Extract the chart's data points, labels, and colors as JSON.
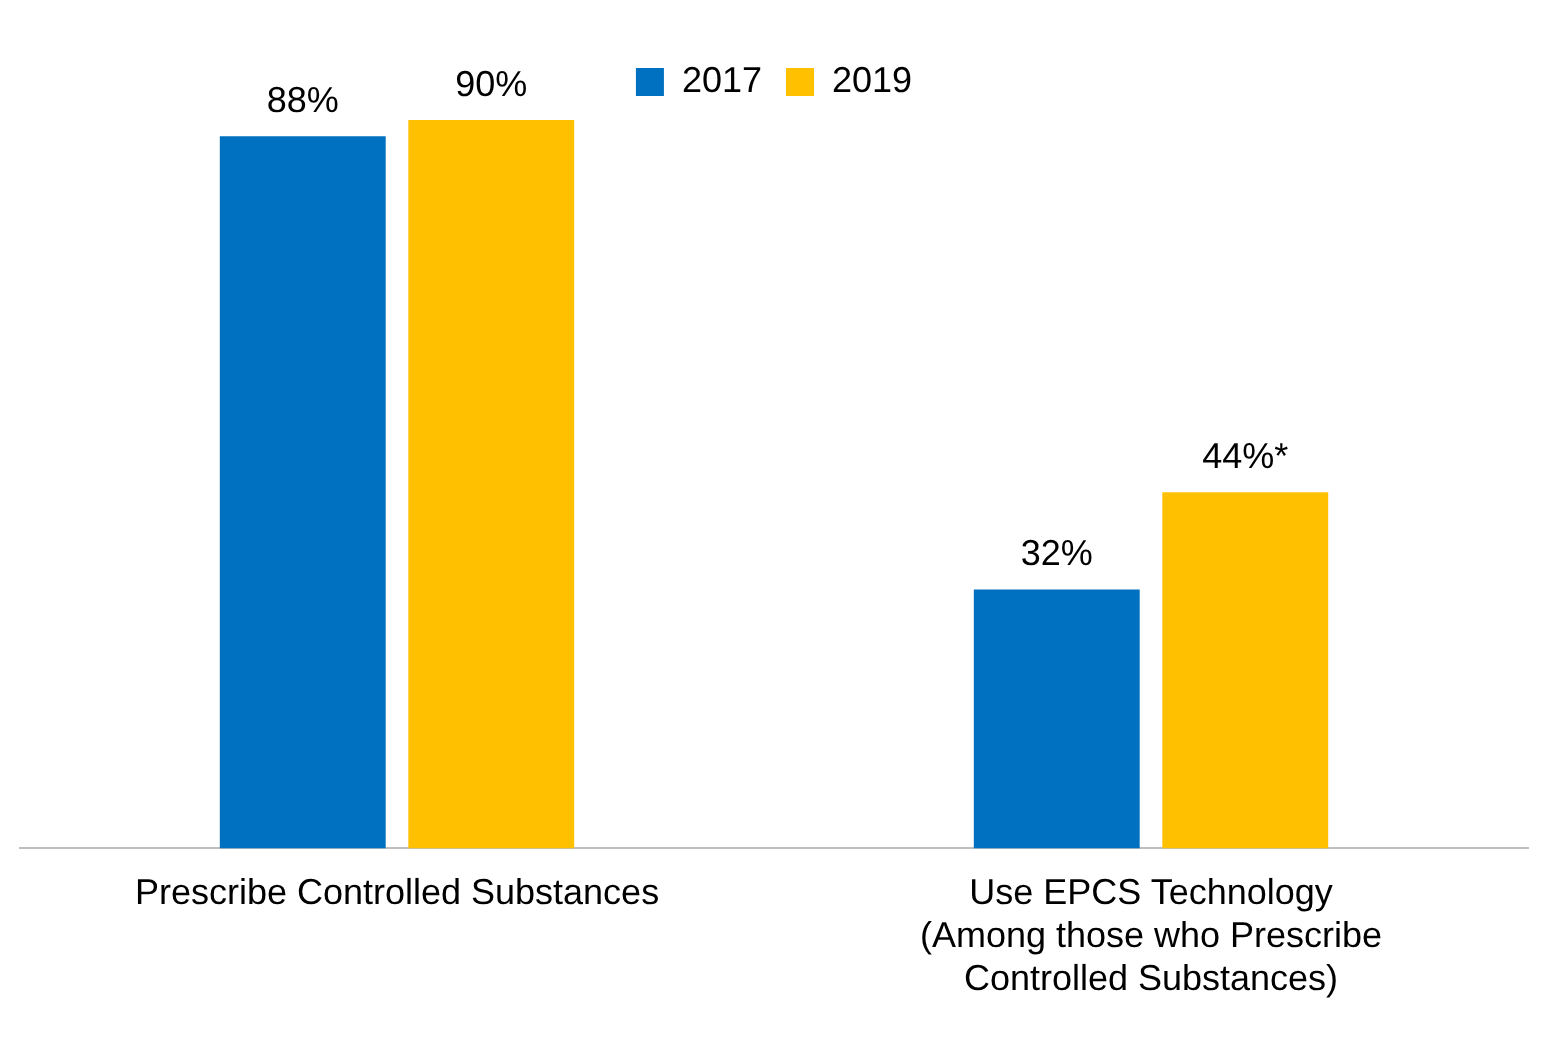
{
  "chart_data": {
    "type": "bar",
    "categories": [
      "Prescribe Controlled Substances",
      "Use EPCS Technology\n(Among those who Prescribe\nControlled Substances)"
    ],
    "series": [
      {
        "name": "2017",
        "color": "#0070c0",
        "values": [
          88,
          32
        ],
        "value_labels": [
          "88%",
          "32%"
        ]
      },
      {
        "name": "2019",
        "color": "#ffc000",
        "values": [
          90,
          44
        ],
        "value_labels": [
          "90%",
          "44%*"
        ]
      }
    ],
    "legend": "top",
    "grid": false,
    "tick_labels": "x"
  }
}
